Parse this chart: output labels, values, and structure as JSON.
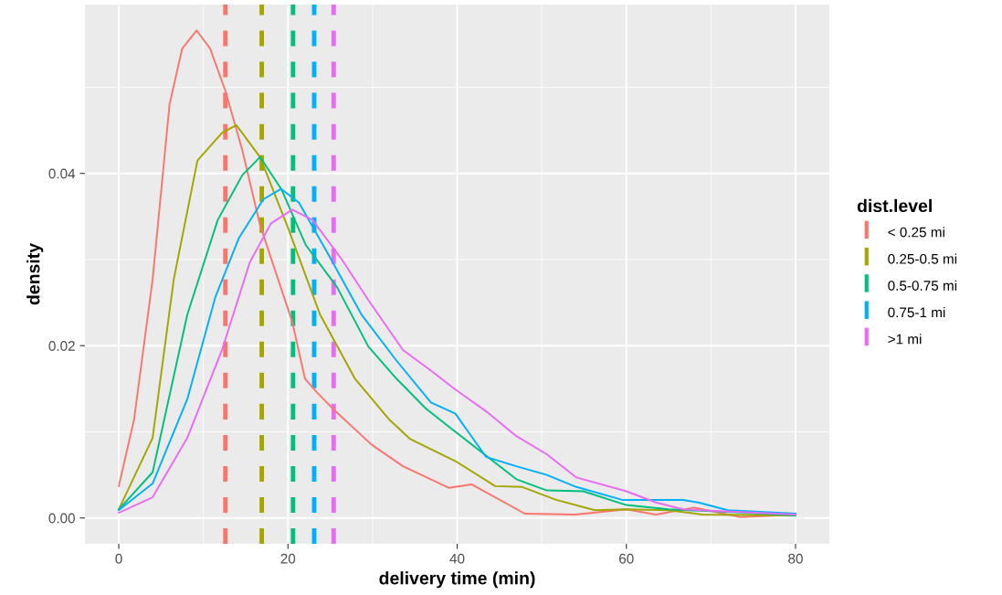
{
  "chart_data": {
    "type": "line",
    "xlabel": "delivery time (min)",
    "ylabel": "density",
    "legend_title": "dist.level",
    "xlim": [
      -4,
      84
    ],
    "ylim": [
      -0.003,
      0.0596
    ],
    "xticks": [
      0,
      20,
      40,
      60,
      80
    ],
    "yticks": [
      {
        "value": 0,
        "label": "0.00"
      },
      {
        "value": 0.02,
        "label": "0.02"
      },
      {
        "value": 0.04,
        "label": "0.04"
      }
    ],
    "grid": true,
    "legend": "right",
    "line_style": "solid",
    "series": [
      {
        "name": "< 0.25 mi",
        "color": "#f8766d",
        "x": [
          0,
          1.8,
          4,
          6,
          7.5,
          9.2,
          10.8,
          12.6,
          14.6,
          16.7,
          20.5,
          22,
          23.4,
          25.4,
          29.9,
          33.6,
          39,
          41.7,
          48,
          54,
          60,
          63.5,
          68,
          73.5,
          80
        ],
        "values": [
          0.0037,
          0.0114,
          0.0277,
          0.048,
          0.0545,
          0.0566,
          0.0545,
          0.0496,
          0.0427,
          0.034,
          0.0228,
          0.0162,
          0.0146,
          0.0126,
          0.0085,
          0.006,
          0.0035,
          0.0039,
          0.0005,
          0.0004,
          0.001,
          0.0004,
          0.0012,
          0.0001,
          0.0004
        ]
      },
      {
        "name": "0.25-0.5 mi",
        "color": "#a3a500",
        "x": [
          0,
          4,
          6.5,
          9.3,
          12.2,
          13.9,
          16.7,
          20,
          23.8,
          27.9,
          32,
          34.4,
          39.8,
          44.5,
          47.7,
          51.7,
          56.3,
          60,
          65,
          69,
          80
        ],
        "values": [
          0.001,
          0.0093,
          0.0277,
          0.0415,
          0.0447,
          0.0456,
          0.0419,
          0.0337,
          0.0236,
          0.0162,
          0.0114,
          0.0092,
          0.0066,
          0.0037,
          0.0036,
          0.0021,
          0.0009,
          0.001,
          0.0009,
          0.0004,
          0.0003
        ]
      },
      {
        "name": "0.5-0.75 mi",
        "color": "#00bf7d",
        "x": [
          0,
          4,
          8.1,
          11.7,
          14.6,
          16.7,
          19.2,
          22.1,
          25.8,
          29.5,
          32.8,
          36.3,
          39.8,
          47,
          50.6,
          54.9,
          60,
          65,
          72,
          80
        ],
        "values": [
          0.001,
          0.0053,
          0.0236,
          0.0346,
          0.0398,
          0.0419,
          0.0382,
          0.0317,
          0.0268,
          0.0199,
          0.0162,
          0.0127,
          0.01,
          0.0045,
          0.0032,
          0.0031,
          0.0015,
          0.001,
          0.0007,
          0.0003
        ]
      },
      {
        "name": "0.75-1 mi",
        "color": "#00b0f6",
        "x": [
          0,
          4,
          8.1,
          11.4,
          14.2,
          17.1,
          19.2,
          21.3,
          24.6,
          28.7,
          32.8,
          36.9,
          39.8,
          43.4,
          47,
          50.6,
          54.1,
          59.5,
          66.7,
          68.5,
          72,
          80
        ],
        "values": [
          0.0009,
          0.004,
          0.0138,
          0.0256,
          0.0325,
          0.037,
          0.0382,
          0.0366,
          0.0309,
          0.0236,
          0.0183,
          0.0134,
          0.0121,
          0.0071,
          0.006,
          0.005,
          0.0036,
          0.0021,
          0.0021,
          0.0018,
          0.0009,
          0.0005
        ]
      },
      {
        "name": ">1 mi",
        "color": "#e76bf3",
        "x": [
          0,
          4,
          8.1,
          12.2,
          15.5,
          18,
          20.5,
          22.9,
          26.3,
          29.5,
          33.6,
          36.9,
          39.8,
          43.4,
          47,
          50.6,
          54.1,
          60,
          63.5,
          66.7,
          80
        ],
        "values": [
          0.0006,
          0.0024,
          0.0093,
          0.0195,
          0.0297,
          0.0342,
          0.0358,
          0.0346,
          0.0301,
          0.0253,
          0.0195,
          0.0171,
          0.0149,
          0.0124,
          0.0095,
          0.0074,
          0.0047,
          0.0031,
          0.0018,
          0.001,
          0.0004
        ]
      }
    ],
    "ref_lines": [
      {
        "axis": "x",
        "value": 12.6,
        "label": null,
        "color": "#f8766d",
        "line_style": "dashed"
      },
      {
        "axis": "x",
        "value": 16.9,
        "label": null,
        "color": "#a3a500",
        "line_style": "dashed"
      },
      {
        "axis": "x",
        "value": 20.6,
        "label": null,
        "color": "#00bf7d",
        "line_style": "dashed"
      },
      {
        "axis": "x",
        "value": 23.1,
        "label": null,
        "color": "#00b0f6",
        "line_style": "dashed"
      },
      {
        "axis": "x",
        "value": 25.4,
        "label": null,
        "color": "#e76bf3",
        "line_style": "dashed"
      }
    ]
  }
}
